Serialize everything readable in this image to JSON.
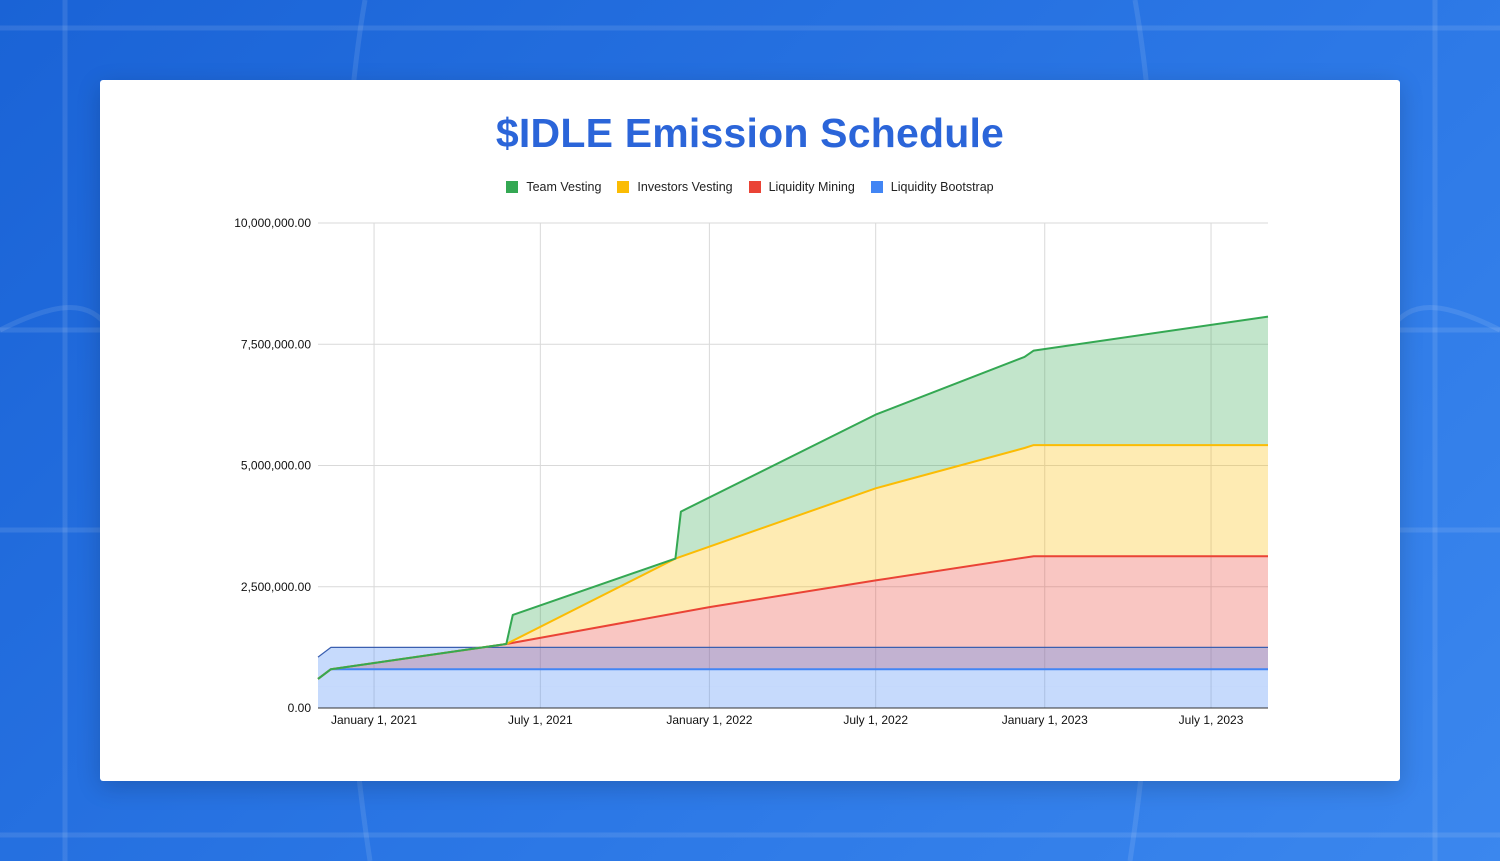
{
  "chart_data": {
    "type": "area",
    "stacked": true,
    "title": "$IDLE Emission Schedule",
    "xlabel": "",
    "ylabel": "",
    "ylim": [
      0,
      10000000
    ],
    "y_ticks": [
      0,
      2500000,
      5000000,
      7500000,
      10000000
    ],
    "y_tick_labels": [
      "0.00",
      "2,500,000.00",
      "5,000,000.00",
      "7,500,000.00",
      "10,000,000.00"
    ],
    "x_range": [
      "2020-11-01",
      "2023-09-01"
    ],
    "x_ticks": [
      "2021-01-01",
      "2021-07-01",
      "2022-01-01",
      "2022-07-01",
      "2023-01-01",
      "2023-07-01"
    ],
    "x_tick_labels": [
      "January 1, 2021",
      "July 1, 2021",
      "January 1, 2022",
      "July 1, 2022",
      "January 1, 2023",
      "July 1, 2023"
    ],
    "grid": true,
    "legend_position": "top",
    "series": [
      {
        "name": "Liquidity Bootstrap",
        "color": "#4285f4",
        "points": [
          [
            "2020-11-01",
            600000
          ],
          [
            "2020-11-15",
            800000
          ],
          [
            "2023-09-01",
            800000
          ]
        ]
      },
      {
        "name": "Liquidity Mining",
        "color": "#ea4335",
        "points": [
          [
            "2020-11-01",
            600000
          ],
          [
            "2020-11-15",
            800000
          ],
          [
            "2021-05-25",
            1320000
          ],
          [
            "2022-01-01",
            2080000
          ],
          [
            "2022-07-01",
            2630000
          ],
          [
            "2022-12-20",
            3130000
          ],
          [
            "2023-09-01",
            3130000
          ]
        ]
      },
      {
        "name": "Investors Vesting",
        "color": "#fbbc04",
        "points": [
          [
            "2020-11-01",
            600000
          ],
          [
            "2020-11-15",
            800000
          ],
          [
            "2021-05-25",
            1320000
          ],
          [
            "2021-11-25",
            3080000
          ],
          [
            "2022-07-01",
            4530000
          ],
          [
            "2022-12-10",
            5360000
          ],
          [
            "2022-12-20",
            5420000
          ],
          [
            "2023-09-01",
            5420000
          ]
        ]
      },
      {
        "name": "Team Vesting",
        "color": "#34a853",
        "points": [
          [
            "2020-11-01",
            600000
          ],
          [
            "2020-11-15",
            800000
          ],
          [
            "2021-05-25",
            1320000
          ],
          [
            "2021-06-01",
            1920000
          ],
          [
            "2021-11-25",
            3080000
          ],
          [
            "2021-12-01",
            4050000
          ],
          [
            "2022-07-01",
            6050000
          ],
          [
            "2022-12-10",
            7240000
          ],
          [
            "2022-12-20",
            7370000
          ],
          [
            "2023-09-01",
            8070000
          ]
        ]
      }
    ],
    "bootstrap_band": {
      "lower": 440000,
      "upper": 1250000
    }
  },
  "legend": [
    {
      "label": "Team Vesting",
      "color": "#34a853"
    },
    {
      "label": "Investors Vesting",
      "color": "#fbbc04"
    },
    {
      "label": "Liquidity Mining",
      "color": "#ea4335"
    },
    {
      "label": "Liquidity Bootstrap",
      "color": "#4285f4"
    }
  ]
}
